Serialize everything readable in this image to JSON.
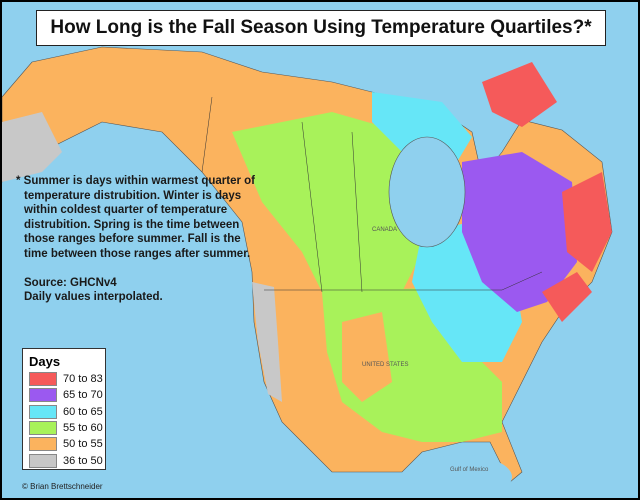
{
  "title": "How Long is the Fall Season Using Temperature Quartiles?*",
  "note": {
    "definition": "* Summer is days within warmest quarter of temperature distrubition. Winter is days within coldest quarter of temperature distrubition. Spring is the time between those ranges before summer. Fall is the time between those ranges after summer.",
    "source": "Source: GHCNv4",
    "method": "Daily values interpolated."
  },
  "legend": {
    "title": "Days",
    "items": [
      {
        "label": "70 to 83",
        "color": "#f55a5a"
      },
      {
        "label": "65 to 70",
        "color": "#9b59f0"
      },
      {
        "label": "60 to 65",
        "color": "#66e6f7"
      },
      {
        "label": "55 to 60",
        "color": "#a8f25a"
      },
      {
        "label": "50 to 55",
        "color": "#fbb35e"
      },
      {
        "label": "36 to 50",
        "color": "#c8c8c8"
      }
    ]
  },
  "map_labels": {
    "us": "UNITED STATES",
    "gulf": "Gulf of Mexico",
    "canada": "CANADA"
  },
  "credit": "© Brian Brettschneider"
}
